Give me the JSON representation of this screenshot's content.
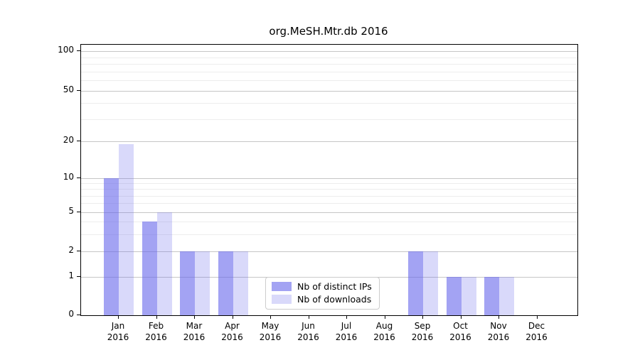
{
  "chart_data": {
    "type": "bar",
    "title": "org.MeSH.Mtr.db 2016",
    "categories": [
      "Jan",
      "Feb",
      "Mar",
      "Apr",
      "May",
      "Jun",
      "Jul",
      "Aug",
      "Sep",
      "Oct",
      "Nov",
      "Dec"
    ],
    "x_year": "2016",
    "series": [
      {
        "key": "distinct-ips",
        "name": "Nb of distinct IPs",
        "color": "#6666eb",
        "alpha": 0.6,
        "values": [
          10,
          4,
          2,
          2,
          0,
          0,
          0,
          0,
          2,
          1,
          1,
          0
        ]
      },
      {
        "key": "downloads",
        "name": "Nb of downloads",
        "color": "#6666eb",
        "alpha": 0.25,
        "values": [
          19,
          5,
          2,
          2,
          0,
          0,
          0,
          0,
          2,
          1,
          1,
          0
        ]
      }
    ],
    "y_ticks": [
      0,
      1,
      2,
      5,
      10,
      20,
      50,
      100
    ],
    "y_minor_ticks": [
      3,
      4,
      6,
      7,
      8,
      9,
      30,
      40,
      60,
      70,
      80,
      90
    ],
    "ylim": [
      0,
      110
    ],
    "yscale": "log-like",
    "grid": "horizontal",
    "legend_position": "lower-center",
    "colors": {
      "grid_major": "#c6c6c6",
      "grid_minor": "#ededed",
      "axis": "#000000",
      "background": "#ffffff"
    }
  }
}
